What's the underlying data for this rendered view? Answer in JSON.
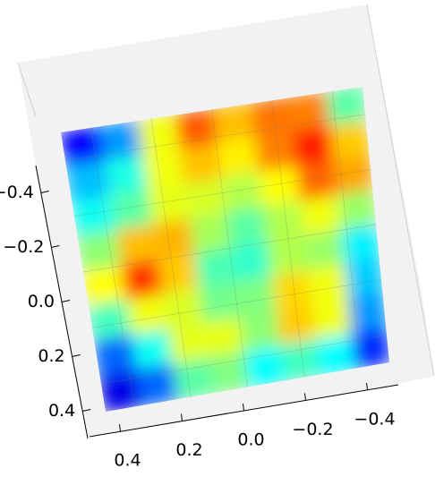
{
  "chart_data": {
    "type": "surface",
    "colormap": "jet",
    "x": [
      -0.5,
      -0.375,
      -0.25,
      -0.125,
      0,
      0.125,
      0.25,
      0.375,
      0.5
    ],
    "y": [
      -0.5,
      -0.375,
      -0.25,
      -0.125,
      0,
      0.125,
      0.25,
      0.375,
      0.5
    ],
    "z": [
      [
        0.2,
        0.5,
        0.8,
        0.6,
        0.75,
        0.8,
        0.3,
        0.1,
        0.0
      ],
      [
        0.4,
        0.75,
        0.95,
        0.7,
        0.7,
        0.9,
        0.45,
        0.25,
        0.15
      ],
      [
        0.6,
        0.95,
        0.75,
        0.6,
        0.55,
        0.6,
        0.5,
        0.4,
        0.45
      ],
      [
        0.5,
        0.8,
        0.6,
        0.55,
        0.5,
        0.7,
        0.6,
        0.35,
        0.35
      ],
      [
        0.3,
        0.5,
        0.55,
        0.5,
        0.3,
        0.65,
        0.85,
        0.95,
        0.4
      ],
      [
        0.2,
        0.45,
        0.6,
        0.55,
        0.35,
        0.5,
        0.7,
        0.8,
        0.35
      ],
      [
        0.15,
        0.5,
        0.9,
        0.6,
        0.5,
        0.6,
        0.55,
        0.4,
        0.2
      ],
      [
        0.1,
        0.35,
        0.7,
        0.5,
        0.45,
        0.85,
        0.4,
        0.2,
        0.1
      ],
      [
        0.05,
        0.15,
        0.3,
        0.25,
        0.3,
        0.4,
        0.2,
        0.1,
        0.0
      ]
    ],
    "zlim": [
      0,
      1
    ],
    "xlim": [
      -0.5,
      0.5
    ],
    "ylim": [
      -0.5,
      0.5
    ],
    "xticks": [
      {
        "value": 0.4,
        "label": "0.4"
      },
      {
        "value": 0.2,
        "label": "0.2"
      },
      {
        "value": 0,
        "label": "0.0"
      },
      {
        "value": -0.2,
        "label": "−0.2"
      },
      {
        "value": -0.4,
        "label": "−0.4"
      }
    ],
    "yticks": [
      {
        "value": -0.4,
        "label": "−0.4"
      },
      {
        "value": -0.2,
        "label": "−0.2"
      },
      {
        "value": 0,
        "label": "0.0"
      },
      {
        "value": 0.2,
        "label": "0.2"
      },
      {
        "value": 0.4,
        "label": "0.4"
      }
    ],
    "grid": true
  }
}
